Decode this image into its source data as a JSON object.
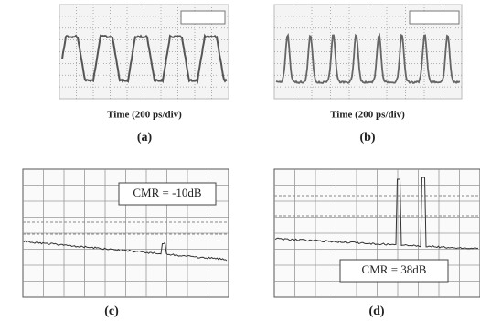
{
  "panels": [
    {
      "caption": "Time (200 ps/div)",
      "label": "(a)"
    },
    {
      "caption": "Time (200 ps/div)",
      "label": "(b)"
    },
    {
      "annotation": "CMR = -10dB",
      "label": "(c)"
    },
    {
      "annotation": "CMR = 38dB",
      "label": "(d)"
    }
  ]
}
